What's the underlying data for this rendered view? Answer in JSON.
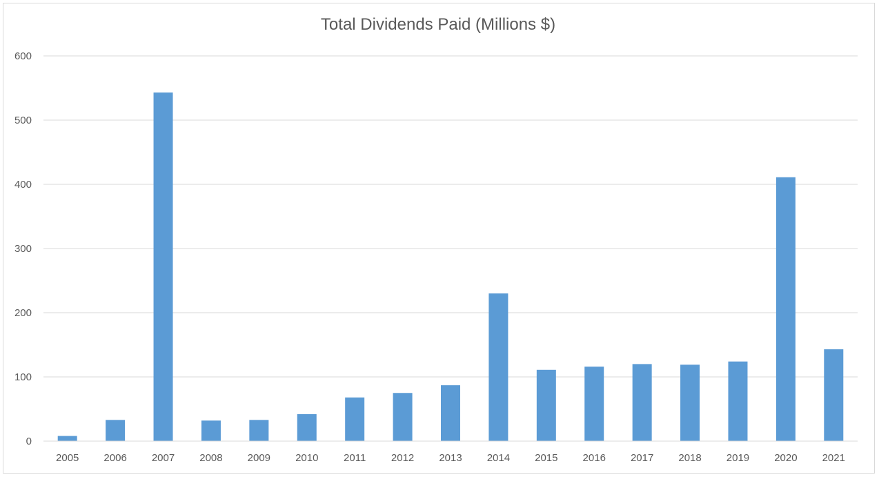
{
  "chart_data": {
    "type": "bar",
    "title": "Total Dividends Paid (Millions $)",
    "xlabel": "",
    "ylabel": "",
    "categories": [
      "2005",
      "2006",
      "2007",
      "2008",
      "2009",
      "2010",
      "2011",
      "2012",
      "2013",
      "2014",
      "2015",
      "2016",
      "2017",
      "2018",
      "2019",
      "2020",
      "2021"
    ],
    "values": [
      8,
      33,
      543,
      32,
      33,
      42,
      68,
      75,
      87,
      230,
      111,
      116,
      120,
      119,
      124,
      411,
      143
    ],
    "ylim": [
      0,
      600
    ],
    "yticks": [
      0,
      100,
      200,
      300,
      400,
      500,
      600
    ],
    "grid": true,
    "legend": "none",
    "bar_color": "#5b9bd5",
    "grid_color": "#d9d9d9"
  }
}
